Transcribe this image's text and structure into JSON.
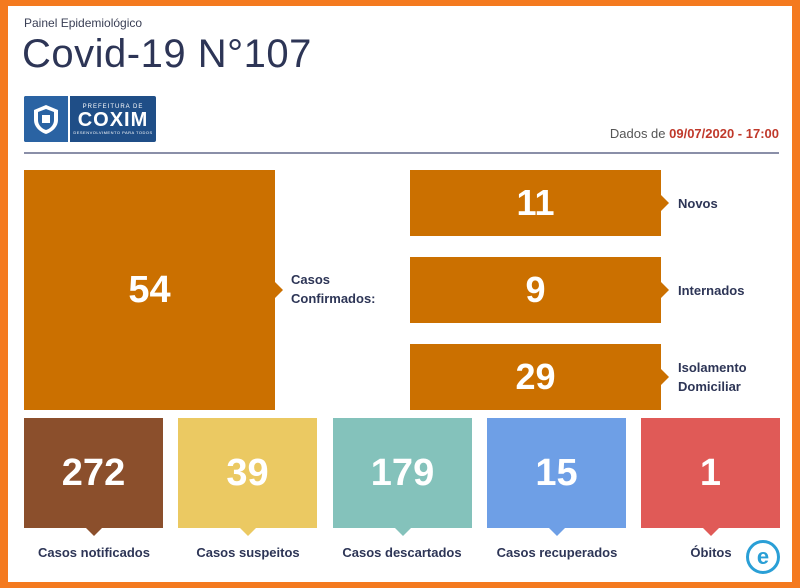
{
  "header": {
    "kicker": "Painel Epidemiológico",
    "title": "Covid-19 N°107",
    "logo": {
      "line1": "PREFEITURA DE",
      "line2": "COXIM",
      "line3": "DESENVOLVIMENTO PARA TODOS"
    },
    "date_prefix": "Dados de ",
    "date_value": "09/07/2020 - 17:00"
  },
  "confirmed": {
    "value": "54",
    "label": "Casos Confirmados:"
  },
  "breakdown": [
    {
      "value": "11",
      "label": "Novos"
    },
    {
      "value": "9",
      "label": "Internados"
    },
    {
      "value": "29",
      "label": "Isolamento Domiciliar"
    }
  ],
  "stats": [
    {
      "value": "272",
      "label": "Casos notificados",
      "color": "#8b4f2c"
    },
    {
      "value": "39",
      "label": "Casos suspeitos",
      "color": "#ebc962"
    },
    {
      "value": "179",
      "label": "Casos descartados",
      "color": "#84c2bb"
    },
    {
      "value": "15",
      "label": "Casos recuperados",
      "color": "#6e9fe6"
    },
    {
      "value": "1",
      "label": "Óbitos",
      "color": "#e05a57"
    }
  ],
  "colors": {
    "accent": "#cb7000",
    "border": "#f47a1f",
    "title": "#2d3556"
  },
  "watermark": {
    "letter": "e"
  }
}
